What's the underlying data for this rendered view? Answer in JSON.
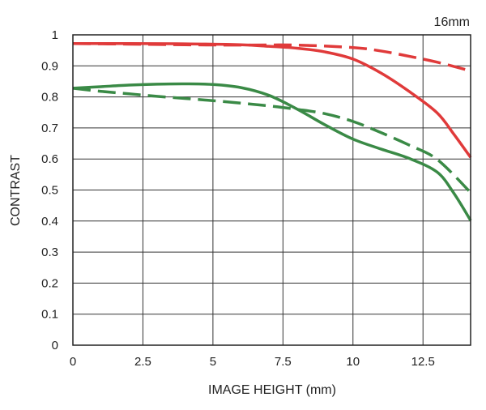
{
  "chart_data": {
    "type": "line",
    "title": "16mm",
    "xlabel": "IMAGE HEIGHT (mm)",
    "ylabel": "CONTRAST",
    "xlim": [
      0,
      14.2
    ],
    "ylim": [
      0,
      1
    ],
    "x_ticks": [
      0,
      2.5,
      5,
      7.5,
      10,
      12.5
    ],
    "x_tick_labels": [
      "0",
      "2.5",
      "5",
      "7.5",
      "10",
      "12.5"
    ],
    "y_ticks": [
      0,
      0.1,
      0.2,
      0.3,
      0.4,
      0.5,
      0.6,
      0.7,
      0.8,
      0.9,
      1
    ],
    "y_tick_labels": [
      "0",
      "0.1",
      "0.2",
      "0.3",
      "0.4",
      "0.5",
      "0.6",
      "0.7",
      "0.8",
      "0.9",
      "1"
    ],
    "grid": true,
    "legend": "none",
    "series": [
      {
        "color": "#e03a3a",
        "dash": "solid",
        "x": [
          0,
          2,
          4,
          6,
          7,
          8,
          9,
          10,
          11,
          12,
          13,
          13.6,
          14.2
        ],
        "y": [
          0.972,
          0.972,
          0.971,
          0.968,
          0.963,
          0.957,
          0.945,
          0.922,
          0.877,
          0.818,
          0.749,
          0.68,
          0.605
        ]
      },
      {
        "color": "#e03a3a",
        "dash": "dashed",
        "x": [
          0,
          2,
          4,
          6,
          8,
          10,
          11,
          12,
          13,
          14.2
        ],
        "y": [
          0.972,
          0.97,
          0.968,
          0.967,
          0.967,
          0.959,
          0.948,
          0.931,
          0.912,
          0.884
        ]
      },
      {
        "color": "#3a8a46",
        "dash": "solid",
        "x": [
          0,
          1,
          2,
          3,
          4,
          5,
          6,
          7,
          8,
          9,
          10,
          11,
          12,
          13,
          13.6,
          14.2
        ],
        "y": [
          0.828,
          0.833,
          0.838,
          0.841,
          0.842,
          0.84,
          0.83,
          0.805,
          0.761,
          0.71,
          0.664,
          0.632,
          0.602,
          0.558,
          0.49,
          0.402
        ]
      },
      {
        "color": "#3a8a46",
        "dash": "dashed",
        "x": [
          0,
          1,
          2,
          3,
          4,
          5,
          6,
          7,
          8,
          9,
          10,
          11,
          12,
          13,
          14.2
        ],
        "y": [
          0.828,
          0.818,
          0.81,
          0.802,
          0.795,
          0.788,
          0.78,
          0.771,
          0.76,
          0.746,
          0.721,
          0.685,
          0.645,
          0.599,
          0.492
        ]
      }
    ]
  }
}
